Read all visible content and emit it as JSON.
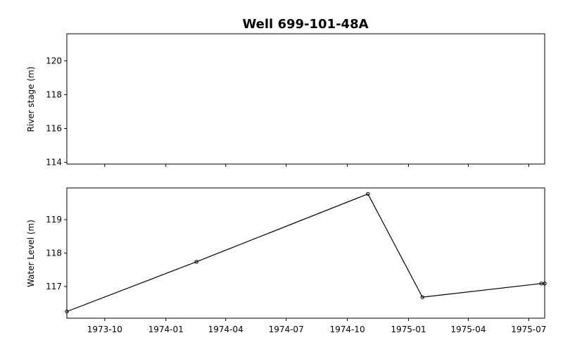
{
  "chart_data": {
    "title": "Well 699-101-48A",
    "x_tick_labels": [
      "1973-10",
      "1974-01",
      "1974-04",
      "1974-07",
      "1974-10",
      "1975-01",
      "1975-04",
      "1975-07"
    ],
    "x_ticks": [
      "1973-10-01",
      "1974-01-01",
      "1974-04-01",
      "1974-07-01",
      "1974-10-01",
      "1975-01-01",
      "1975-04-01",
      "1975-07-01"
    ],
    "xlim": [
      "1973-08-05",
      "1975-07-25"
    ],
    "panels": [
      {
        "type": "line",
        "ylabel": "River stage (m)",
        "ylim": [
          113.9,
          121.6
        ],
        "y_ticks": [
          114,
          116,
          118,
          120
        ],
        "y_tick_labels": [
          "114",
          "116",
          "118",
          "120"
        ],
        "series": []
      },
      {
        "type": "line",
        "ylabel": "Water Level (m)",
        "ylim": [
          116.05,
          119.95
        ],
        "y_ticks": [
          117,
          118,
          119
        ],
        "y_tick_labels": [
          "117",
          "118",
          "119"
        ],
        "series": [
          {
            "color": "#000000",
            "marker": "circle",
            "points": [
              {
                "x": "1973-08-05",
                "y": 116.25
              },
              {
                "x": "1974-02-16",
                "y": 117.74
              },
              {
                "x": "1974-11-01",
                "y": 119.77
              },
              {
                "x": "1975-01-22",
                "y": 116.68
              },
              {
                "x": "1975-07-20",
                "y": 117.09
              },
              {
                "x": "1975-07-25",
                "y": 117.09
              }
            ]
          }
        ]
      }
    ],
    "grid": false,
    "legend": "none"
  }
}
